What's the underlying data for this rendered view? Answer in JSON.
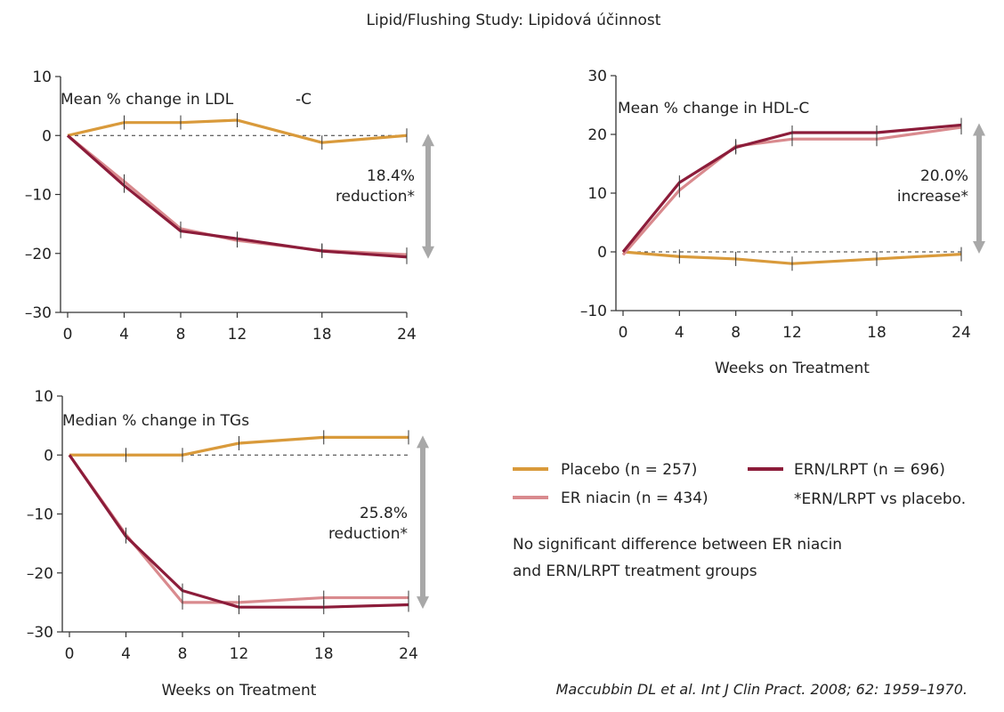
{
  "figure_title": "Lipid/Flushing Study: Lipidová účinnost",
  "colors": {
    "placebo": "#d99a3b",
    "er_niacin": "#d98a8e",
    "ern_lrpt": "#8c1c3a",
    "arrow": "#a8a8a8"
  },
  "legend": {
    "placebo": "Placebo (n = 257)",
    "er_niacin": "ER niacin (n = 434)",
    "ern_lrpt": "ERN/LRPT (n = 696)",
    "footnote": "*ERN/LRPT vs placebo."
  },
  "note": {
    "line1": "No significant difference between ER niacin",
    "line2": "and ERN/LRPT treatment groups"
  },
  "citation": "Maccubbin DL et al. Int J Clin Pract. 2008; 62: 1959–1970.",
  "chart_data": [
    {
      "type": "line",
      "title": "Mean % change in LDL",
      "title_suffix": "-C",
      "xlabel": "",
      "ylabel": "",
      "x": [
        0,
        4,
        8,
        12,
        18,
        24
      ],
      "xticks": [
        0,
        4,
        8,
        12,
        18,
        24
      ],
      "ylim": [
        -30,
        10
      ],
      "yticks": [
        10,
        0,
        -10,
        -20,
        -30
      ],
      "ytick_labels": [
        "10",
        "0",
        "–10",
        "–20",
        "–30"
      ],
      "series": [
        {
          "key": "placebo",
          "values": [
            0,
            2.2,
            2.2,
            2.6,
            -1.2,
            0
          ]
        },
        {
          "key": "er_niacin",
          "values": [
            0,
            -7.8,
            -15.8,
            -17.8,
            -19.5,
            -20.2
          ]
        },
        {
          "key": "ern_lrpt",
          "values": [
            0,
            -8.5,
            -16.2,
            -17.5,
            -19.6,
            -20.6
          ]
        }
      ],
      "annotation": {
        "line1": "18.4%",
        "line2": "reduction*",
        "arrow_from": 0,
        "arrow_to": -20.6
      }
    },
    {
      "type": "line",
      "title": "Mean % change in HDL-C",
      "xlabel": "Weeks on Treatment",
      "ylabel": "",
      "x": [
        0,
        4,
        8,
        12,
        18,
        24
      ],
      "xticks": [
        0,
        4,
        8,
        12,
        18,
        24
      ],
      "ylim": [
        -10,
        30
      ],
      "yticks": [
        30,
        20,
        10,
        0,
        -10
      ],
      "ytick_labels": [
        "30",
        "20",
        "10",
        "0",
        "–10"
      ],
      "series": [
        {
          "key": "placebo",
          "values": [
            0,
            -0.8,
            -1.2,
            -2,
            -1.2,
            -0.4
          ]
        },
        {
          "key": "er_niacin",
          "values": [
            -0.5,
            10.5,
            18,
            19.2,
            19.2,
            21.2
          ]
        },
        {
          "key": "ern_lrpt",
          "values": [
            0,
            11.8,
            17.8,
            20.3,
            20.3,
            21.6
          ]
        }
      ],
      "annotation": {
        "line1": "20.0%",
        "line2": "increase*",
        "arrow_from": 21.6,
        "arrow_to": 0
      }
    },
    {
      "type": "line",
      "title": "Median % change in TGs",
      "xlabel": "Weeks on Treatment",
      "ylabel": "",
      "x": [
        0,
        4,
        8,
        12,
        18,
        24
      ],
      "xticks": [
        0,
        4,
        8,
        12,
        18,
        24
      ],
      "ylim": [
        -30,
        10
      ],
      "yticks": [
        10,
        0,
        -10,
        -20,
        -30
      ],
      "ytick_labels": [
        "10",
        "0",
        "–10",
        "–20",
        "–30"
      ],
      "series": [
        {
          "key": "placebo",
          "values": [
            0,
            0,
            0,
            2,
            3,
            3
          ]
        },
        {
          "key": "er_niacin",
          "values": [
            0,
            -13.5,
            -25,
            -25,
            -24.2,
            -24.2
          ]
        },
        {
          "key": "ern_lrpt",
          "values": [
            0,
            -13.8,
            -23,
            -25.8,
            -25.8,
            -25.4
          ]
        }
      ],
      "annotation": {
        "line1": "25.8%",
        "line2": "reduction*",
        "arrow_from": 3,
        "arrow_to": -25.8
      }
    }
  ]
}
